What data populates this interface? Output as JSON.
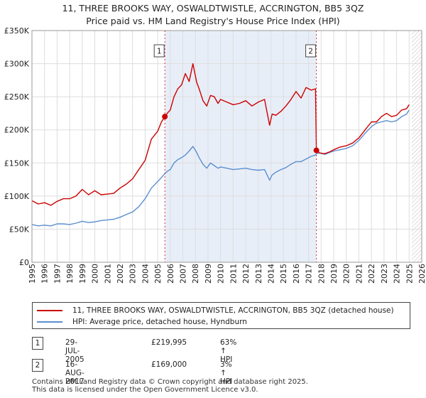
{
  "title_line1": "11, THREE BROOKS WAY, OSWALDTWISTLE, ACCRINGTON, BB5 3QZ",
  "title_line2": "Price paid vs. HM Land Registry's House Price Index (HPI)",
  "colors": {
    "price_line": "#cc0000",
    "hpi_line": "#5b8fcf",
    "shade": "#e8eef8",
    "marker_dash": "#e03030"
  },
  "legend": {
    "price_label": "11, THREE BROOKS WAY, OSWALDTWISTLE, ACCRINGTON, BB5 3QZ (detached house)",
    "hpi_label": "HPI: Average price, detached house, Hyndburn"
  },
  "sales": [
    {
      "badge": "1",
      "date": "29-JUL-2005",
      "price": "£219,995",
      "hpi": "63% ↑ HPI"
    },
    {
      "badge": "2",
      "date": "16-AUG-2017",
      "price": "£169,000",
      "hpi": "3% ↑ HPI"
    }
  ],
  "footer_line1": "Contains HM Land Registry data © Crown copyright and database right 2025.",
  "footer_line2": "This data is licensed under the Open Government Licence v3.0.",
  "chart_data": {
    "type": "line",
    "title": "Price paid vs. HM Land Registry's House Price Index (HPI)",
    "xlim": [
      1995,
      2026
    ],
    "ylim": [
      0,
      350000
    ],
    "x_ticks": [
      "1995",
      "1996",
      "1997",
      "1998",
      "1999",
      "2000",
      "2001",
      "2002",
      "2003",
      "2004",
      "2005",
      "2006",
      "2007",
      "2008",
      "2009",
      "2010",
      "2011",
      "2012",
      "2013",
      "2014",
      "2015",
      "2016",
      "2017",
      "2018",
      "2019",
      "2020",
      "2021",
      "2022",
      "2023",
      "2024",
      "2025",
      "2026"
    ],
    "y_ticks": [
      {
        "value": 0,
        "label": "£0"
      },
      {
        "value": 50000,
        "label": "£50K"
      },
      {
        "value": 100000,
        "label": "£100K"
      },
      {
        "value": 150000,
        "label": "£150K"
      },
      {
        "value": 200000,
        "label": "£200K"
      },
      {
        "value": 250000,
        "label": "£250K"
      },
      {
        "value": 300000,
        "label": "£300K"
      },
      {
        "value": 350000,
        "label": "£350K"
      }
    ],
    "shaded_range": [
      2005.57,
      2017.62
    ],
    "future_hatch_from": 2025.2,
    "sale_markers": [
      {
        "label": "1",
        "x": 2005.57,
        "y": 219995
      },
      {
        "label": "2",
        "x": 2017.62,
        "y": 169000
      }
    ],
    "series": [
      {
        "name": "11, THREE BROOKS WAY, OSWALDTWISTLE, ACCRINGTON, BB5 3QZ (detached house)",
        "x": [
          1995.0,
          1995.5,
          1996.0,
          1996.5,
          1997.0,
          1997.5,
          1998.0,
          1998.5,
          1999.0,
          1999.5,
          2000.0,
          2000.5,
          2001.0,
          2001.5,
          2002.0,
          2002.5,
          2003.0,
          2003.5,
          2004.0,
          2004.5,
          2005.0,
          2005.3,
          2005.57,
          2005.8,
          2006.0,
          2006.3,
          2006.6,
          2006.9,
          2007.2,
          2007.5,
          2007.8,
          2008.1,
          2008.3,
          2008.6,
          2008.9,
          2009.2,
          2009.5,
          2009.8,
          2010.0,
          2010.5,
          2011.0,
          2011.5,
          2012.0,
          2012.5,
          2013.0,
          2013.5,
          2013.9,
          2014.1,
          2014.4,
          2014.8,
          2015.2,
          2015.6,
          2016.0,
          2016.4,
          2016.8,
          2017.2,
          2017.55,
          2017.62,
          2017.9,
          2018.3,
          2018.7,
          2019.0,
          2019.5,
          2020.0,
          2020.5,
          2021.0,
          2021.5,
          2022.0,
          2022.4,
          2022.8,
          2023.2,
          2023.6,
          2024.0,
          2024.4,
          2024.8,
          2025.0
        ],
        "values": [
          93000,
          88000,
          90000,
          86000,
          92000,
          96000,
          96000,
          100000,
          110000,
          102000,
          108000,
          102000,
          103000,
          104000,
          112000,
          118000,
          126000,
          140000,
          154000,
          186000,
          198000,
          212000,
          219995,
          226000,
          230000,
          250000,
          262000,
          268000,
          285000,
          273000,
          300000,
          272000,
          262000,
          244000,
          236000,
          252000,
          250000,
          240000,
          246000,
          242000,
          238000,
          240000,
          244000,
          236000,
          242000,
          246000,
          207000,
          224000,
          222000,
          228000,
          236000,
          246000,
          258000,
          248000,
          264000,
          260000,
          262000,
          169000,
          165000,
          164000,
          167000,
          170000,
          174000,
          176000,
          180000,
          188000,
          200000,
          212000,
          212000,
          220000,
          225000,
          220000,
          222000,
          230000,
          232000,
          238000
        ]
      },
      {
        "name": "HPI: Average price, detached house, Hyndburn",
        "x": [
          1995.0,
          1995.5,
          1996.0,
          1996.5,
          1997.0,
          1997.5,
          1998.0,
          1998.5,
          1999.0,
          1999.5,
          2000.0,
          2000.5,
          2001.0,
          2001.5,
          2002.0,
          2002.5,
          2003.0,
          2003.5,
          2004.0,
          2004.5,
          2005.0,
          2005.3,
          2005.57,
          2005.8,
          2006.0,
          2006.3,
          2006.6,
          2006.9,
          2007.2,
          2007.5,
          2007.8,
          2008.1,
          2008.3,
          2008.6,
          2008.9,
          2009.2,
          2009.5,
          2009.8,
          2010.0,
          2010.5,
          2011.0,
          2011.5,
          2012.0,
          2012.5,
          2013.0,
          2013.5,
          2013.9,
          2014.1,
          2014.4,
          2014.8,
          2015.2,
          2015.6,
          2016.0,
          2016.4,
          2016.8,
          2017.2,
          2017.55,
          2017.62,
          2017.9,
          2018.3,
          2018.7,
          2019.0,
          2019.5,
          2020.0,
          2020.5,
          2021.0,
          2021.5,
          2022.0,
          2022.4,
          2022.8,
          2023.2,
          2023.6,
          2024.0,
          2024.4,
          2024.8,
          2025.0
        ],
        "values": [
          57000,
          55000,
          56000,
          55000,
          58000,
          58000,
          57000,
          59000,
          62000,
          60000,
          61000,
          63000,
          64000,
          65000,
          68000,
          72000,
          76000,
          84000,
          96000,
          112000,
          122000,
          128000,
          134000,
          138000,
          140000,
          150000,
          155000,
          158000,
          162000,
          168000,
          175000,
          166000,
          158000,
          148000,
          142000,
          150000,
          146000,
          142000,
          144000,
          142000,
          140000,
          141000,
          142000,
          140000,
          139000,
          140000,
          124000,
          132000,
          136000,
          140000,
          143000,
          148000,
          152000,
          152000,
          156000,
          160000,
          162000,
          164000,
          165000,
          163000,
          166000,
          168000,
          170000,
          172000,
          176000,
          184000,
          195000,
          205000,
          210000,
          212000,
          214000,
          212000,
          214000,
          220000,
          224000,
          230000
        ]
      }
    ]
  }
}
